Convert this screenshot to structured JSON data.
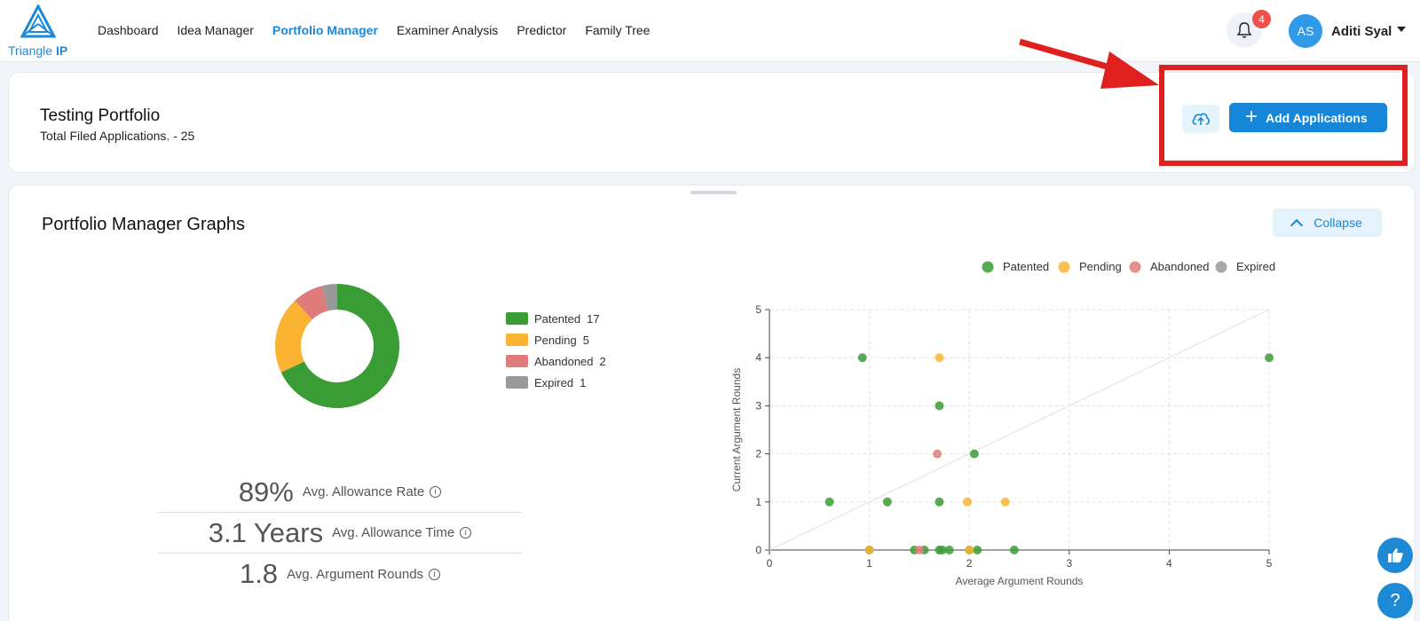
{
  "brand": {
    "name_plain": "Triangle ",
    "name_bold": "IP"
  },
  "nav": {
    "items": [
      {
        "label": "Dashboard",
        "active": false
      },
      {
        "label": "Idea Manager",
        "active": false
      },
      {
        "label": "Portfolio Manager",
        "active": true
      },
      {
        "label": "Examiner Analysis",
        "active": false
      },
      {
        "label": "Predictor",
        "active": false
      },
      {
        "label": "Family Tree",
        "active": false
      }
    ]
  },
  "header": {
    "notification_count": "4",
    "avatar_initials": "AS",
    "user_name": "Aditi Syal"
  },
  "portfolio": {
    "title": "Testing Portfolio",
    "subtitle": "Total Filed Applications. - 25",
    "add_label": "Add Applications"
  },
  "graphs": {
    "title": "Portfolio Manager Graphs",
    "collapse_label": "Collapse"
  },
  "stats": [
    {
      "value": "89%",
      "label": "Avg. Allowance Rate"
    },
    {
      "value": "3.1 Years",
      "label": "Avg. Allowance Time"
    },
    {
      "value": "1.8",
      "label": "Avg. Argument Rounds"
    }
  ],
  "colors": {
    "accent": "#1686d9",
    "patented": "#3a9c34",
    "pending": "#fbb432",
    "abandoned": "#e07b7b",
    "expired": "#999999",
    "annotation": "#e0201e"
  },
  "chart_data": [
    {
      "type": "pie",
      "variant": "donut",
      "title": "",
      "categories": [
        "Patented",
        "Pending",
        "Abandoned",
        "Expired"
      ],
      "values": [
        17,
        5,
        2,
        1
      ],
      "legend_position": "right"
    },
    {
      "type": "scatter",
      "title": "",
      "xlabel": "Average Argument Rounds",
      "ylabel": "Current Argument Rounds",
      "xlim": [
        0,
        5
      ],
      "ylim": [
        0,
        5
      ],
      "xticks": [
        "0",
        "1",
        "2",
        "3",
        "4",
        "5"
      ],
      "yticks": [
        "0",
        "1",
        "2",
        "3",
        "4",
        "5"
      ],
      "grid": true,
      "legend_position": "top-right",
      "reference_line": "y = x",
      "series": [
        {
          "name": "Patented",
          "points": [
            [
              0.6,
              1
            ],
            [
              0.93,
              4
            ],
            [
              1.18,
              1
            ],
            [
              1.7,
              3
            ],
            [
              1.7,
              1
            ],
            [
              2.05,
              2
            ],
            [
              5,
              4
            ],
            [
              1,
              0
            ],
            [
              1.45,
              0
            ],
            [
              1.55,
              0
            ],
            [
              1.7,
              0
            ],
            [
              1.73,
              0
            ],
            [
              1.8,
              0
            ],
            [
              2.0,
              0
            ],
            [
              2.08,
              0
            ],
            [
              2.45,
              0
            ]
          ]
        },
        {
          "name": "Pending",
          "points": [
            [
              1.7,
              4
            ],
            [
              1.98,
              1
            ],
            [
              2.36,
              1
            ],
            [
              1.0,
              0
            ],
            [
              2.0,
              0
            ]
          ]
        },
        {
          "name": "Abandoned",
          "points": [
            [
              1.68,
              2
            ],
            [
              1.5,
              0
            ]
          ]
        },
        {
          "name": "Expired",
          "points": []
        }
      ]
    }
  ]
}
